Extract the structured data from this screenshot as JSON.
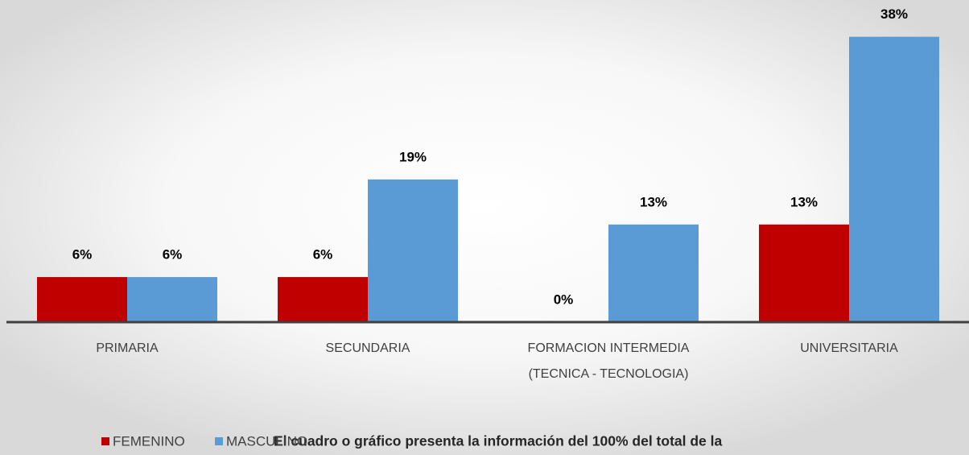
{
  "chart_data": {
    "type": "bar",
    "categories": [
      "PRIMARIA",
      "SECUNDARIA",
      "FORMACION INTERMEDIA\n(TECNICA - TECNOLOGIA)",
      "UNIVERSITARIA"
    ],
    "series": [
      {
        "name": "FEMENINO",
        "color": "#c00000",
        "values": [
          6,
          6,
          0,
          13
        ],
        "value_labels": [
          "6%",
          "6%",
          "0%",
          "13%"
        ]
      },
      {
        "name": "MASCULINO",
        "color": "#5b9bd5",
        "values": [
          6,
          19,
          13,
          38
        ],
        "value_labels": [
          "6%",
          "19%",
          "13%",
          "38%"
        ]
      }
    ],
    "ylim": [
      0,
      40
    ],
    "legend": "bottom-left",
    "note": "El cuadro o gráfico presenta la información del 100% del total de la"
  }
}
